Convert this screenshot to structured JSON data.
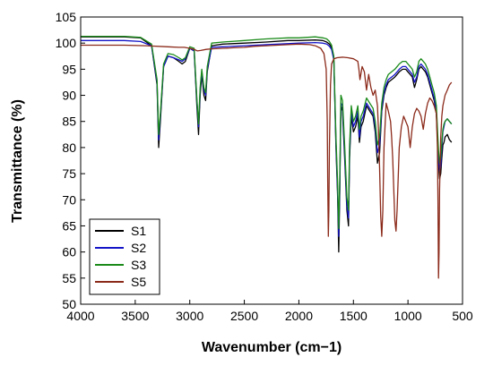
{
  "chart_data": {
    "type": "line",
    "title": "",
    "xlabel": "Wavenumber (cm−1)",
    "ylabel": "Transmittance (%)",
    "xlim": [
      4000,
      500
    ],
    "ylim": [
      50,
      105
    ],
    "x_reversed": true,
    "x_ticks": [
      "4000",
      "3500",
      "3000",
      "2500",
      "2000",
      "1500",
      "1000",
      "500"
    ],
    "y_ticks": [
      "50",
      "55",
      "60",
      "65",
      "70",
      "75",
      "80",
      "85",
      "90",
      "95",
      "100",
      "105"
    ],
    "grid": false,
    "legend_position": "bottom-left",
    "series": [
      {
        "name": "S1",
        "color": "#000000",
        "x": [
          4000,
          3600,
          3450,
          3350,
          3300,
          3285,
          3270,
          3240,
          3200,
          3150,
          3100,
          3070,
          3040,
          3000,
          2960,
          2935,
          2920,
          2905,
          2890,
          2870,
          2855,
          2840,
          2800,
          2700,
          2500,
          2300,
          2100,
          2000,
          1850,
          1780,
          1745,
          1720,
          1700,
          1680,
          1660,
          1645,
          1635,
          1625,
          1615,
          1600,
          1580,
          1560,
          1545,
          1535,
          1520,
          1500,
          1480,
          1460,
          1445,
          1430,
          1410,
          1380,
          1350,
          1320,
          1300,
          1280,
          1260,
          1240,
          1220,
          1200,
          1180,
          1150,
          1120,
          1100,
          1080,
          1050,
          1020,
          1000,
          980,
          960,
          940,
          920,
          900,
          880,
          860,
          840,
          820,
          800,
          780,
          760,
          740,
          720,
          710,
          700,
          690,
          680,
          670,
          660,
          640,
          620,
          600
        ],
        "y": [
          101.2,
          101.2,
          101.0,
          99.5,
          92.0,
          80.0,
          85.0,
          95.5,
          97.5,
          97.2,
          96.5,
          96.0,
          96.5,
          99.0,
          98.5,
          88.0,
          82.5,
          90.0,
          94.0,
          90.0,
          89.0,
          94.5,
          99.5,
          99.8,
          100.0,
          100.2,
          100.5,
          100.5,
          100.6,
          100.5,
          100.2,
          99.8,
          99.2,
          97.0,
          80.0,
          71.0,
          60.0,
          72.0,
          88.0,
          87.0,
          78.0,
          68.0,
          65.0,
          78.0,
          86.0,
          83.0,
          84.0,
          86.0,
          81.0,
          84.0,
          85.0,
          88.0,
          87.0,
          86.0,
          83.0,
          77.0,
          79.0,
          87.0,
          90.0,
          91.5,
          92.5,
          93.0,
          93.5,
          94.0,
          94.5,
          95.0,
          95.0,
          94.5,
          94.0,
          93.5,
          91.5,
          93.0,
          95.0,
          95.5,
          95.0,
          94.5,
          93.5,
          92.0,
          90.5,
          89.0,
          86.5,
          77.0,
          74.0,
          75.0,
          78.0,
          80.5,
          81.0,
          82.0,
          82.5,
          81.5,
          81.0
        ]
      },
      {
        "name": "S2",
        "color": "#1414c8",
        "x": [
          4000,
          3600,
          3450,
          3350,
          3300,
          3285,
          3270,
          3240,
          3200,
          3150,
          3100,
          3070,
          3040,
          3000,
          2960,
          2935,
          2920,
          2905,
          2890,
          2870,
          2855,
          2840,
          2800,
          2700,
          2500,
          2300,
          2100,
          2000,
          1850,
          1780,
          1745,
          1720,
          1700,
          1680,
          1660,
          1645,
          1635,
          1625,
          1615,
          1600,
          1580,
          1560,
          1545,
          1535,
          1520,
          1500,
          1480,
          1460,
          1445,
          1430,
          1410,
          1380,
          1350,
          1320,
          1300,
          1280,
          1260,
          1240,
          1220,
          1200,
          1180,
          1150,
          1120,
          1100,
          1080,
          1050,
          1020,
          1000,
          980,
          960,
          940,
          920,
          900,
          880,
          860,
          840,
          820,
          800,
          780,
          760,
          740,
          720,
          710,
          700,
          690,
          680,
          670,
          660,
          640,
          620,
          600
        ],
        "y": [
          100.5,
          100.5,
          100.3,
          99.5,
          92.5,
          81.5,
          86.0,
          95.5,
          97.5,
          97.2,
          96.8,
          96.5,
          97.0,
          99.0,
          98.5,
          89.0,
          84.0,
          91.0,
          94.5,
          91.0,
          90.0,
          95.0,
          99.2,
          99.3,
          99.5,
          99.7,
          99.9,
          100.0,
          100.1,
          100.0,
          99.8,
          99.4,
          98.8,
          96.8,
          81.0,
          72.0,
          63.0,
          73.0,
          88.5,
          88.0,
          79.0,
          69.0,
          66.5,
          79.0,
          87.0,
          84.0,
          85.0,
          87.0,
          82.0,
          85.0,
          86.0,
          88.5,
          87.5,
          86.5,
          84.0,
          79.0,
          80.5,
          87.5,
          90.5,
          92.0,
          93.0,
          93.5,
          94.0,
          94.5,
          95.0,
          95.5,
          95.5,
          95.0,
          94.5,
          94.0,
          92.5,
          93.5,
          95.5,
          96.0,
          95.5,
          95.0,
          94.0,
          92.5,
          91.0,
          89.5,
          87.0,
          78.0,
          75.5,
          76.5,
          80.0,
          83.0,
          84.0,
          85.0,
          85.5,
          85.0,
          84.5
        ]
      },
      {
        "name": "S3",
        "color": "#1a8a1a",
        "x": [
          4000,
          3600,
          3450,
          3350,
          3300,
          3285,
          3270,
          3240,
          3200,
          3150,
          3100,
          3070,
          3040,
          3000,
          2960,
          2935,
          2920,
          2905,
          2890,
          2870,
          2855,
          2840,
          2800,
          2700,
          2500,
          2300,
          2100,
          2000,
          1850,
          1780,
          1745,
          1720,
          1700,
          1680,
          1660,
          1645,
          1635,
          1625,
          1615,
          1600,
          1580,
          1560,
          1545,
          1535,
          1520,
          1500,
          1480,
          1460,
          1445,
          1430,
          1410,
          1380,
          1350,
          1320,
          1300,
          1280,
          1260,
          1240,
          1220,
          1200,
          1180,
          1150,
          1120,
          1100,
          1080,
          1050,
          1020,
          1000,
          980,
          960,
          940,
          920,
          900,
          880,
          860,
          840,
          820,
          800,
          780,
          760,
          740,
          720,
          710,
          700,
          690,
          680,
          670,
          660,
          640,
          620,
          600
        ],
        "y": [
          101.3,
          101.3,
          101.1,
          99.8,
          93.0,
          82.5,
          86.5,
          96.0,
          98.0,
          97.8,
          97.2,
          96.8,
          97.2,
          99.3,
          99.0,
          89.5,
          84.5,
          91.5,
          95.0,
          91.5,
          90.5,
          95.5,
          100.0,
          100.2,
          100.5,
          100.8,
          101.0,
          101.0,
          101.2,
          101.0,
          100.8,
          100.3,
          99.6,
          97.5,
          82.0,
          73.5,
          64.5,
          75.0,
          90.0,
          89.0,
          80.5,
          70.5,
          68.0,
          80.5,
          88.0,
          85.0,
          86.0,
          88.0,
          83.5,
          86.0,
          87.0,
          89.5,
          88.5,
          87.5,
          85.0,
          80.5,
          82.0,
          88.5,
          91.5,
          93.0,
          94.0,
          94.5,
          95.0,
          95.5,
          96.0,
          96.5,
          96.5,
          96.0,
          95.5,
          95.0,
          93.5,
          94.5,
          96.5,
          97.0,
          96.5,
          96.0,
          95.0,
          93.5,
          92.0,
          90.5,
          88.0,
          79.5,
          77.0,
          78.0,
          81.0,
          83.5,
          84.5,
          85.0,
          85.5,
          85.0,
          84.5
        ]
      },
      {
        "name": "S5",
        "color": "#8b2a1a",
        "x": [
          4000,
          3600,
          3400,
          3200,
          3100,
          3050,
          3000,
          2960,
          2930,
          2900,
          2850,
          2800,
          2700,
          2600,
          2500,
          2400,
          2300,
          2200,
          2100,
          2000,
          1900,
          1850,
          1800,
          1770,
          1750,
          1740,
          1735,
          1730,
          1725,
          1720,
          1710,
          1700,
          1680,
          1650,
          1600,
          1550,
          1500,
          1460,
          1450,
          1440,
          1420,
          1400,
          1380,
          1360,
          1340,
          1320,
          1300,
          1280,
          1270,
          1260,
          1250,
          1240,
          1230,
          1220,
          1200,
          1180,
          1160,
          1150,
          1140,
          1130,
          1120,
          1110,
          1100,
          1080,
          1060,
          1040,
          1020,
          1000,
          980,
          960,
          940,
          920,
          900,
          880,
          860,
          840,
          820,
          800,
          780,
          760,
          740,
          730,
          725,
          720,
          715,
          710,
          700,
          690,
          680,
          660,
          640,
          620,
          600
        ],
        "y": [
          99.6,
          99.6,
          99.5,
          99.3,
          99.2,
          99.2,
          99.0,
          98.8,
          98.5,
          98.6,
          98.8,
          98.9,
          99.0,
          99.1,
          99.2,
          99.4,
          99.5,
          99.6,
          99.7,
          99.8,
          99.7,
          99.5,
          99.0,
          98.0,
          95.0,
          85.0,
          72.0,
          63.0,
          68.0,
          80.0,
          92.0,
          96.0,
          97.0,
          97.2,
          97.3,
          97.2,
          97.0,
          96.5,
          95.0,
          93.0,
          95.5,
          94.5,
          91.0,
          94.0,
          91.5,
          90.0,
          91.0,
          88.0,
          83.0,
          76.0,
          67.0,
          63.0,
          68.0,
          80.0,
          88.5,
          87.0,
          85.0,
          82.0,
          78.0,
          72.0,
          66.0,
          64.0,
          68.0,
          80.0,
          84.0,
          86.0,
          85.0,
          84.0,
          80.0,
          84.0,
          86.5,
          87.5,
          87.0,
          86.0,
          83.5,
          86.5,
          88.5,
          89.5,
          89.0,
          88.0,
          86.5,
          80.0,
          70.0,
          55.0,
          60.0,
          72.0,
          82.0,
          86.0,
          88.0,
          90.0,
          91.0,
          92.0,
          92.5
        ]
      }
    ]
  }
}
